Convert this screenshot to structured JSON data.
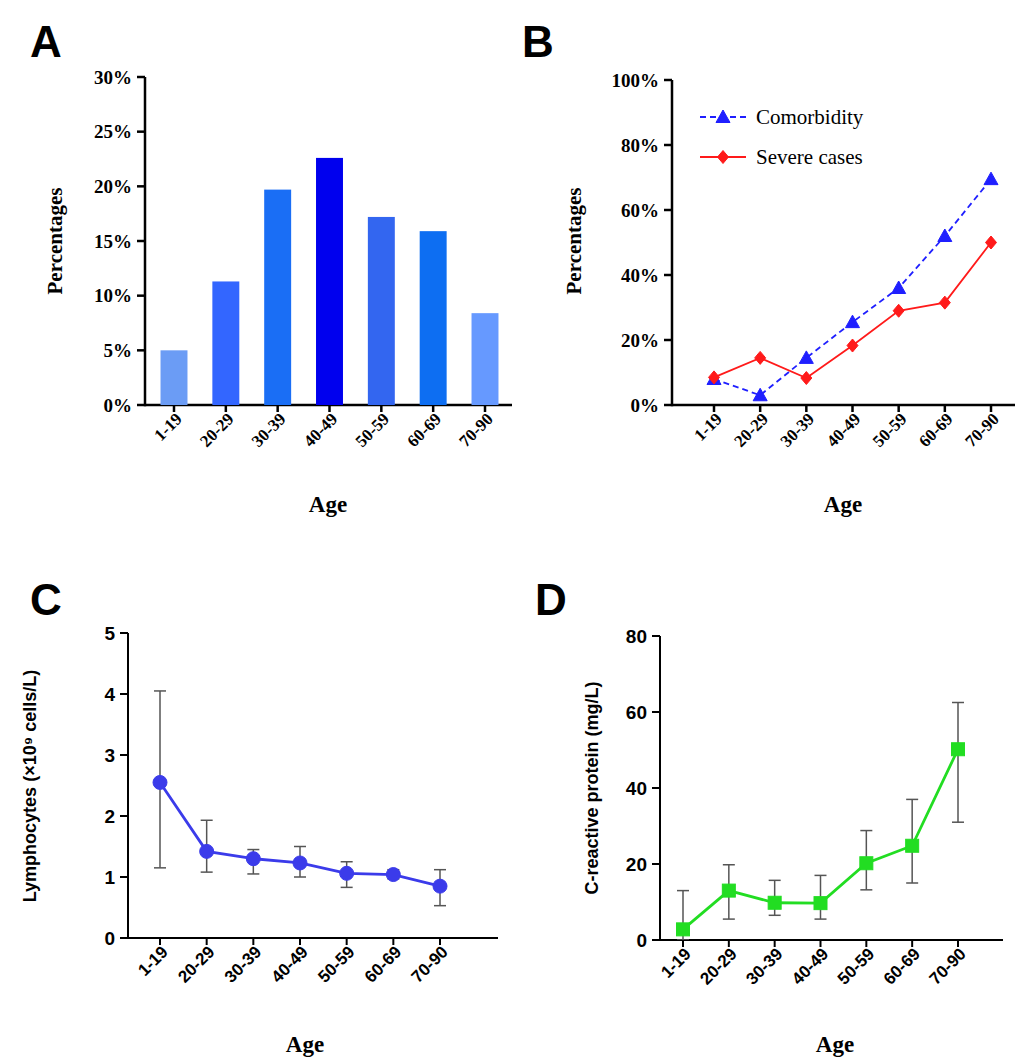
{
  "chart_data": [
    {
      "type": "bar",
      "title": "A",
      "x_label": "Age",
      "y_label": "Percentages",
      "categories": [
        "1-19",
        "20-29",
        "30-39",
        "40-49",
        "50-59",
        "60-69",
        "70-90"
      ],
      "values": [
        5,
        11.3,
        19.7,
        22.6,
        17.2,
        15.9,
        8.4
      ],
      "colors": [
        "#6b9cf5",
        "#3366ff",
        "#1a6ef5",
        "#0000ee",
        "#3366f0",
        "#0d6ef2",
        "#6699ff"
      ],
      "ylim": [
        0,
        30
      ],
      "yticks": [
        {
          "value": 0,
          "label": "0%"
        },
        {
          "value": 5,
          "label": "5%"
        },
        {
          "value": 10,
          "label": "10%"
        },
        {
          "value": 15,
          "label": "15%"
        },
        {
          "value": 20,
          "label": "20%"
        },
        {
          "value": 25,
          "label": "25%"
        },
        {
          "value": 30,
          "label": "30%"
        }
      ]
    },
    {
      "type": "line",
      "title": "B",
      "x_label": "Age",
      "y_label": "Percentages",
      "categories": [
        "1-19",
        "20-29",
        "30-39",
        "40-49",
        "50-59",
        "60-69",
        "70-90"
      ],
      "series": [
        {
          "name": "Comorbidity",
          "color": "#1f1fff",
          "marker": "triangle",
          "line_style": "dashed",
          "values": [
            8,
            3,
            14.5,
            25.5,
            36,
            52,
            69.5
          ]
        },
        {
          "name": "Severe cases",
          "color": "#ff1a1a",
          "marker": "diamond",
          "line_style": "solid",
          "values": [
            8.5,
            14.5,
            8.3,
            18.3,
            29,
            31.5,
            50
          ]
        }
      ],
      "legend": "upper left",
      "ylim": [
        0,
        100
      ],
      "yticks": [
        {
          "value": 0,
          "label": "0%"
        },
        {
          "value": 20,
          "label": "20%"
        },
        {
          "value": 40,
          "label": "40%"
        },
        {
          "value": 60,
          "label": "60%"
        },
        {
          "value": 80,
          "label": "80%"
        },
        {
          "value": 100,
          "label": "100%"
        }
      ]
    },
    {
      "type": "line",
      "title": "C",
      "x_label": "Age",
      "y_label": "Lymphocytes (×10⁹ cells/L)",
      "categories": [
        "1-19",
        "20-29",
        "30-39",
        "40-49",
        "50-59",
        "60-69",
        "70-90"
      ],
      "values": [
        2.55,
        1.42,
        1.3,
        1.23,
        1.06,
        1.04,
        0.85
      ],
      "lower": [
        1.15,
        1.08,
        1.05,
        1.0,
        0.83,
        0.97,
        0.53
      ],
      "upper": [
        4.05,
        1.93,
        1.45,
        1.5,
        1.25,
        1.12,
        1.12
      ],
      "color": "#3b3bea",
      "marker": "circle",
      "line_style": "solid",
      "ylim": [
        0,
        5
      ],
      "yticks": [
        0,
        1,
        2,
        3,
        4,
        5
      ]
    },
    {
      "type": "line",
      "title": "D",
      "x_label": "Age",
      "y_label": "C-reactive protein (mg/L)",
      "categories": [
        "1-19",
        "20-29",
        "30-39",
        "40-49",
        "50-59",
        "60-69",
        "70-90"
      ],
      "values": [
        2.8,
        13,
        9.8,
        9.7,
        20.2,
        24.8,
        50.2
      ],
      "lower": [
        0,
        5.5,
        6.5,
        5.5,
        13.2,
        15,
        31
      ],
      "upper": [
        13,
        19.8,
        15.7,
        17,
        28.8,
        37,
        62.5
      ],
      "color": "#22dd22",
      "marker": "square",
      "line_style": "solid",
      "ylim": [
        0,
        80
      ],
      "yticks": [
        0,
        20,
        40,
        60,
        80
      ]
    }
  ]
}
